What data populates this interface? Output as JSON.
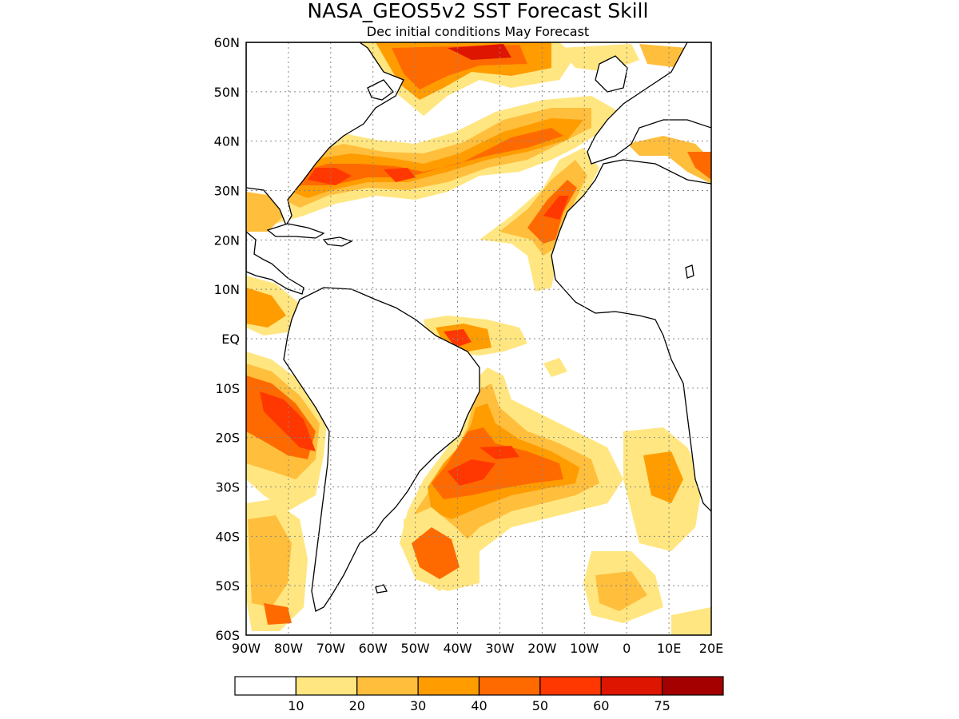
{
  "title": "NASA_GEOS5v2 SST Forecast Skill",
  "subtitle": "Dec initial conditions  May Forecast",
  "map": {
    "region": "Atlantic",
    "lon_range": [
      -90,
      20
    ],
    "lat_range": [
      -60,
      60
    ],
    "grid_lines": "dotted",
    "lat_labels": [
      "60N",
      "50N",
      "40N",
      "30N",
      "20N",
      "10N",
      "EQ",
      "10S",
      "20S",
      "30S",
      "40S",
      "50S",
      "60S"
    ],
    "lon_labels": [
      "90W",
      "80W",
      "70W",
      "60W",
      "50W",
      "40W",
      "30W",
      "20W",
      "10W",
      "0",
      "10E",
      "20E"
    ],
    "high_skill_regions": [
      "Gulf Stream / NW Atlantic",
      "North Atlantic subpolar",
      "Canary Current / NW Africa coast",
      "Equatorial Atlantic off Brazil",
      "SW Atlantic / Brazil-Malvinas",
      "Peru-Chile coast (Pacific)"
    ]
  },
  "colorbar": {
    "tick_labels": [
      "10",
      "20",
      "30",
      "40",
      "50",
      "60",
      "75"
    ],
    "levels": [
      0,
      10,
      20,
      30,
      40,
      50,
      60,
      75,
      100
    ],
    "colors": [
      "#ffffff",
      "#ffe680",
      "#ffbe3c",
      "#ff9c00",
      "#ff6a00",
      "#ff3700",
      "#de1500",
      "#a50000"
    ]
  }
}
